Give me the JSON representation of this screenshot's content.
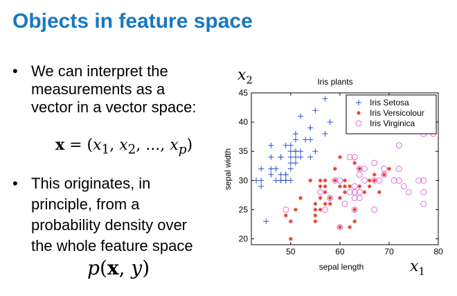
{
  "slide": {
    "title": "Objects in feature space",
    "bullet1": [
      "We can interpret the",
      "measurements as a",
      "vector in a vector space:"
    ],
    "formula_vector": "x = (x1, x2, ..., xp)",
    "bullet2": [
      "This originates, in",
      "principle, from a",
      "probability density over",
      "the whole feature space"
    ],
    "formula_density": "p(x, y)",
    "x2_label": "x2",
    "x1_label": "x1"
  },
  "colors": {
    "title": "#1878c0",
    "setosa": "#3050d0",
    "versicolour": "#e03020",
    "virginica": "#e070d0"
  },
  "chart_data": {
    "type": "scatter",
    "title": "Iris plants",
    "xlabel": "sepal length",
    "ylabel": "sepal width",
    "xlim": [
      42,
      80
    ],
    "ylim": [
      19,
      45
    ],
    "xticks": [
      50,
      60,
      70,
      80
    ],
    "yticks": [
      20,
      25,
      30,
      35,
      40,
      45
    ],
    "grid": false,
    "legend_position": "top-right",
    "series": [
      {
        "name": "Iris Setosa",
        "marker": "plus",
        "points": [
          [
            43,
            30
          ],
          [
            44,
            29
          ],
          [
            44,
            30
          ],
          [
            44,
            32
          ],
          [
            45,
            23
          ],
          [
            46,
            31
          ],
          [
            46,
            32
          ],
          [
            46,
            34
          ],
          [
            46,
            36
          ],
          [
            47,
            30
          ],
          [
            47,
            32
          ],
          [
            47,
            32
          ],
          [
            48,
            30
          ],
          [
            48,
            30
          ],
          [
            48,
            31
          ],
          [
            48,
            34
          ],
          [
            48,
            34
          ],
          [
            49,
            30
          ],
          [
            49,
            30
          ],
          [
            49,
            31
          ],
          [
            49,
            31
          ],
          [
            49,
            36
          ],
          [
            50,
            30
          ],
          [
            50,
            32
          ],
          [
            50,
            33
          ],
          [
            50,
            34
          ],
          [
            50,
            35
          ],
          [
            50,
            36
          ],
          [
            51,
            33
          ],
          [
            51,
            34
          ],
          [
            51,
            35
          ],
          [
            51,
            35
          ],
          [
            51,
            37
          ],
          [
            51,
            38
          ],
          [
            51,
            38
          ],
          [
            52,
            34
          ],
          [
            52,
            35
          ],
          [
            52,
            41
          ],
          [
            53,
            37
          ],
          [
            54,
            34
          ],
          [
            54,
            37
          ],
          [
            54,
            39
          ],
          [
            54,
            39
          ],
          [
            55,
            35
          ],
          [
            55,
            42
          ],
          [
            57,
            38
          ],
          [
            57,
            44
          ],
          [
            58,
            40
          ]
        ]
      },
      {
        "name": "Iris Versicolour",
        "marker": "star",
        "points": [
          [
            49,
            24
          ],
          [
            50,
            20
          ],
          [
            50,
            23
          ],
          [
            51,
            25
          ],
          [
            52,
            27
          ],
          [
            54,
            30
          ],
          [
            55,
            23
          ],
          [
            55,
            24
          ],
          [
            55,
            25
          ],
          [
            55,
            26
          ],
          [
            56,
            25
          ],
          [
            56,
            27
          ],
          [
            56,
            29
          ],
          [
            56,
            30
          ],
          [
            57,
            26
          ],
          [
            57,
            28
          ],
          [
            57,
            29
          ],
          [
            57,
            30
          ],
          [
            58,
            26
          ],
          [
            58,
            27
          ],
          [
            59,
            30
          ],
          [
            59,
            32
          ],
          [
            60,
            22
          ],
          [
            60,
            27
          ],
          [
            60,
            29
          ],
          [
            60,
            34
          ],
          [
            61,
            28
          ],
          [
            61,
            29
          ],
          [
            61,
            30
          ],
          [
            62,
            22
          ],
          [
            62,
            29
          ],
          [
            63,
            23
          ],
          [
            63,
            25
          ],
          [
            63,
            33
          ],
          [
            64,
            29
          ],
          [
            64,
            32
          ],
          [
            65,
            28
          ],
          [
            66,
            29
          ],
          [
            66,
            30
          ],
          [
            67,
            30
          ],
          [
            67,
            31
          ],
          [
            68,
            28
          ],
          [
            69,
            31
          ],
          [
            70,
            32
          ]
        ]
      },
      {
        "name": "Iris Virginica",
        "marker": "circle",
        "points": [
          [
            49,
            25
          ],
          [
            56,
            28
          ],
          [
            57,
            25
          ],
          [
            58,
            27
          ],
          [
            59,
            30
          ],
          [
            60,
            22
          ],
          [
            60,
            30
          ],
          [
            61,
            26
          ],
          [
            62,
            28
          ],
          [
            62,
            34
          ],
          [
            63,
            25
          ],
          [
            63,
            27
          ],
          [
            63,
            28
          ],
          [
            63,
            29
          ],
          [
            63,
            34
          ],
          [
            64,
            27
          ],
          [
            64,
            28
          ],
          [
            64,
            31
          ],
          [
            64,
            32
          ],
          [
            65,
            30
          ],
          [
            65,
            32
          ],
          [
            67,
            25
          ],
          [
            67,
            30
          ],
          [
            67,
            33
          ],
          [
            68,
            30
          ],
          [
            69,
            31
          ],
          [
            69,
            32
          ],
          [
            71,
            30
          ],
          [
            72,
            30
          ],
          [
            72,
            32
          ],
          [
            72,
            36
          ],
          [
            73,
            29
          ],
          [
            74,
            28
          ],
          [
            76,
            30
          ],
          [
            77,
            26
          ],
          [
            77,
            28
          ],
          [
            77,
            30
          ],
          [
            77,
            38
          ],
          [
            79,
            38
          ]
        ]
      }
    ]
  }
}
